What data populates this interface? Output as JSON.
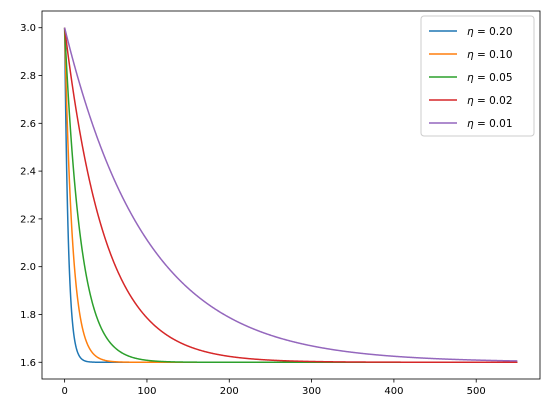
{
  "chart_data": {
    "type": "line",
    "title": "",
    "xlabel": "",
    "ylabel": "",
    "xlim": [
      -27.5,
      577.5
    ],
    "ylim": [
      1.53,
      3.07
    ],
    "x_ticks": [
      0,
      100,
      200,
      300,
      400,
      500
    ],
    "x_tick_labels": [
      "0",
      "100",
      "200",
      "300",
      "400",
      "500"
    ],
    "y_ticks": [
      1.6,
      1.8,
      2.0,
      2.2,
      2.4,
      2.6,
      2.8,
      3.0
    ],
    "y_tick_labels": [
      "1.6",
      "1.8",
      "2.0",
      "2.2",
      "2.4",
      "2.6",
      "2.8",
      "3.0"
    ],
    "grid": false,
    "legend_position": "top-right",
    "x_range": [
      0,
      550
    ],
    "start_value": 3.0,
    "asymptote": 1.6,
    "series": [
      {
        "name": "η = 0.20",
        "symbol": "η",
        "value_text": "= 0.20",
        "eta": 0.2,
        "color": "#1f77b4"
      },
      {
        "name": "η = 0.10",
        "symbol": "η",
        "value_text": "= 0.10",
        "eta": 0.1,
        "color": "#ff7f0e"
      },
      {
        "name": "η = 0.05",
        "symbol": "η",
        "value_text": "= 0.05",
        "eta": 0.05,
        "color": "#2ca02c"
      },
      {
        "name": "η = 0.02",
        "symbol": "η",
        "value_text": "= 0.02",
        "eta": 0.02,
        "color": "#d62728"
      },
      {
        "name": "η = 0.01",
        "symbol": "η",
        "value_text": "= 0.01",
        "eta": 0.01,
        "color": "#9467bd"
      }
    ]
  }
}
